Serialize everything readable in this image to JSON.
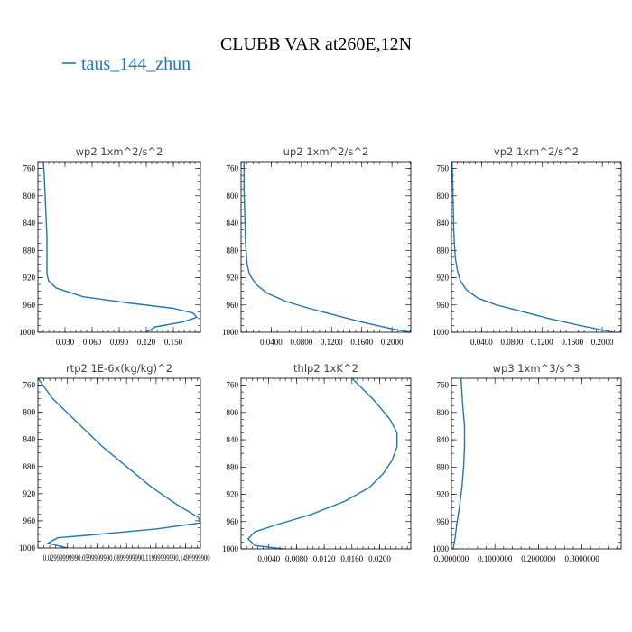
{
  "title": "CLUBB VAR at260E,12N",
  "legend": {
    "label": "taus_144_zhun",
    "color": "#1f77b4"
  },
  "chart_data": [
    {
      "type": "line",
      "title": "wp2   1xm^2/s^2",
      "xlim": [
        0.0,
        0.18
      ],
      "ylim": [
        1000,
        750
      ],
      "xticks": [
        0.03,
        0.06,
        0.09,
        0.12,
        0.15
      ],
      "xtick_labels": [
        "0.030",
        "0.060",
        "0.090",
        "0.120",
        "0.150"
      ],
      "yticks": [
        760,
        800,
        840,
        880,
        920,
        960,
        1000
      ],
      "ytick_labels": [
        "760",
        "800",
        "840",
        "880",
        "920",
        "960",
        "1000"
      ],
      "series": [
        {
          "color": "#1f77b4",
          "points": [
            [
              0.006,
              750
            ],
            [
              0.007,
              770
            ],
            [
              0.008,
              800
            ],
            [
              0.009,
              830
            ],
            [
              0.01,
              860
            ],
            [
              0.01,
              890
            ],
            [
              0.01,
              915
            ],
            [
              0.012,
              925
            ],
            [
              0.02,
              935
            ],
            [
              0.05,
              948
            ],
            [
              0.1,
              957
            ],
            [
              0.15,
              965
            ],
            [
              0.172,
              972
            ],
            [
              0.176,
              978
            ],
            [
              0.16,
              985
            ],
            [
              0.13,
              992
            ],
            [
              0.12,
              1000
            ]
          ]
        }
      ]
    },
    {
      "type": "line",
      "title": "up2   1xm^2/s^2",
      "xlim": [
        0.0,
        0.225
      ],
      "ylim": [
        1000,
        750
      ],
      "xticks": [
        0.04,
        0.08,
        0.12,
        0.16,
        0.2
      ],
      "xtick_labels": [
        "0.0400",
        "0.0800",
        "0.1200",
        "0.1600",
        "0.2000"
      ],
      "yticks": [
        760,
        800,
        840,
        880,
        920,
        960,
        1000
      ],
      "ytick_labels": [
        "760",
        "800",
        "840",
        "880",
        "920",
        "960",
        "1000"
      ],
      "series": [
        {
          "color": "#1f77b4",
          "points": [
            [
              0.004,
              750
            ],
            [
              0.004,
              790
            ],
            [
              0.005,
              830
            ],
            [
              0.006,
              870
            ],
            [
              0.008,
              900
            ],
            [
              0.011,
              915
            ],
            [
              0.02,
              930
            ],
            [
              0.035,
              943
            ],
            [
              0.06,
              955
            ],
            [
              0.09,
              965
            ],
            [
              0.125,
              975
            ],
            [
              0.16,
              985
            ],
            [
              0.2,
              995
            ],
            [
              0.225,
              1000
            ]
          ]
        }
      ]
    },
    {
      "type": "line",
      "title": "vp2   1xm^2/s^2",
      "xlim": [
        0.0,
        0.225
      ],
      "ylim": [
        1000,
        750
      ],
      "xticks": [
        0.04,
        0.08,
        0.12,
        0.16,
        0.2
      ],
      "xtick_labels": [
        "0.0400",
        "0.0800",
        "0.1200",
        "0.1600",
        "0.2000"
      ],
      "yticks": [
        760,
        800,
        840,
        880,
        920,
        960,
        1000
      ],
      "ytick_labels": [
        "760",
        "800",
        "840",
        "880",
        "920",
        "960",
        "1000"
      ],
      "series": [
        {
          "color": "#1f77b4",
          "points": [
            [
              0.001,
              750
            ],
            [
              0.002,
              800
            ],
            [
              0.003,
              850
            ],
            [
              0.005,
              890
            ],
            [
              0.008,
              910
            ],
            [
              0.012,
              925
            ],
            [
              0.02,
              938
            ],
            [
              0.035,
              950
            ],
            [
              0.06,
              960
            ],
            [
              0.095,
              970
            ],
            [
              0.13,
              980
            ],
            [
              0.17,
              990
            ],
            [
              0.215,
              1000
            ]
          ]
        }
      ]
    },
    {
      "type": "line",
      "title": "rtp2   1E-6x(kg/kg)^2",
      "xlim": [
        0.0,
        0.165
      ],
      "ylim": [
        1000,
        750
      ],
      "xticks": [
        0.03,
        0.06,
        0.09,
        0.12,
        0.15
      ],
      "xtick_labels": [
        "0.029999",
        "0.059999",
        "0.089999",
        "0.119999",
        "0.149999"
      ],
      "xtick_label_text": "0.02999999990.0599999990.0899999990.11999999990.1499999900",
      "yticks": [
        760,
        800,
        840,
        880,
        920,
        960,
        1000
      ],
      "ytick_labels": [
        "760",
        "800",
        "840",
        "880",
        "920",
        "960",
        "1000"
      ],
      "series": [
        {
          "color": "#1f77b4",
          "points": [
            [
              0.0,
              750
            ],
            [
              0.015,
              780
            ],
            [
              0.04,
              815
            ],
            [
              0.065,
              850
            ],
            [
              0.09,
              880
            ],
            [
              0.115,
              910
            ],
            [
              0.14,
              935
            ],
            [
              0.163,
              955
            ],
            [
              0.165,
              963
            ],
            [
              0.12,
              972
            ],
            [
              0.06,
              980
            ],
            [
              0.02,
              985
            ],
            [
              0.01,
              993
            ],
            [
              0.03,
              1000
            ]
          ]
        }
      ]
    },
    {
      "type": "line",
      "title": "thlp2   1xK^2",
      "xlim": [
        0.0,
        0.0245
      ],
      "ylim": [
        1000,
        750
      ],
      "xticks": [
        0.004,
        0.008,
        0.012,
        0.016,
        0.02
      ],
      "xtick_labels": [
        "0.0040",
        "0.0080",
        "0.0120",
        "0.0160",
        "0.0200"
      ],
      "yticks": [
        760,
        800,
        840,
        880,
        920,
        960,
        1000
      ],
      "ytick_labels": [
        "760",
        "800",
        "840",
        "880",
        "920",
        "960",
        "1000"
      ],
      "series": [
        {
          "color": "#1f77b4",
          "points": [
            [
              0.016,
              750
            ],
            [
              0.019,
              780
            ],
            [
              0.0215,
              810
            ],
            [
              0.0225,
              830
            ],
            [
              0.0225,
              850
            ],
            [
              0.0218,
              870
            ],
            [
              0.0205,
              890
            ],
            [
              0.0185,
              910
            ],
            [
              0.015,
              930
            ],
            [
              0.01,
              950
            ],
            [
              0.005,
              965
            ],
            [
              0.002,
              975
            ],
            [
              0.001,
              985
            ],
            [
              0.002,
              995
            ],
            [
              0.006,
              1000
            ]
          ]
        }
      ]
    },
    {
      "type": "line",
      "title": "wp3   1xm^3/s^3",
      "xlim": [
        0.0,
        0.39
      ],
      "ylim": [
        1000,
        750
      ],
      "xticks": [
        0.0,
        0.1,
        0.2,
        0.3
      ],
      "xtick_labels": [
        "0.0000000",
        "0.1000000",
        "0.2000000",
        "0.3000000"
      ],
      "yticks": [
        760,
        800,
        840,
        880,
        920,
        960,
        1000
      ],
      "ytick_labels": [
        "760",
        "800",
        "840",
        "880",
        "920",
        "960",
        "1000"
      ],
      "series": [
        {
          "color": "#1f77b4",
          "points": [
            [
              0.022,
              750
            ],
            [
              0.026,
              790
            ],
            [
              0.03,
              820
            ],
            [
              0.03,
              850
            ],
            [
              0.028,
              880
            ],
            [
              0.024,
              910
            ],
            [
              0.018,
              940
            ],
            [
              0.012,
              965
            ],
            [
              0.008,
              985
            ],
            [
              0.004,
              1000
            ]
          ]
        }
      ]
    }
  ]
}
